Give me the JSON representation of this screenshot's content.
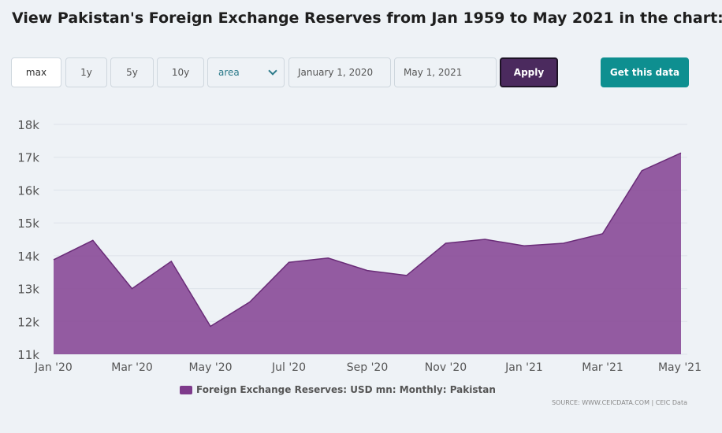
{
  "header": {
    "title": "View Pakistan's Foreign Exchange Reserves from Jan 1959 to May 2021 in the chart:"
  },
  "controls": {
    "ranges": [
      {
        "label": "max",
        "active": true
      },
      {
        "label": "1y",
        "active": false
      },
      {
        "label": "5y",
        "active": false
      },
      {
        "label": "10y",
        "active": false
      }
    ],
    "chart_type": "area",
    "start_date": "January 1, 2020",
    "end_date": "May 1, 2021",
    "apply_label": "Apply",
    "get_data_label": "Get this data"
  },
  "legend": {
    "label": "Foreign Exchange Reserves: USD mn: Monthly: Pakistan"
  },
  "source": "SOURCE: WWW.CEICDATA.COM | CEIC Data",
  "colors": {
    "area": "#8b4e99",
    "line": "#6a2c78",
    "apply": "#4b2a5e",
    "get_data": "#0e8f90"
  },
  "chart_data": {
    "type": "area",
    "title": "",
    "xlabel": "",
    "ylabel": "",
    "x": [
      "Jan 2020",
      "Feb 2020",
      "Mar 2020",
      "Apr 2020",
      "May 2020",
      "Jun 2020",
      "Jul 2020",
      "Aug 2020",
      "Sep 2020",
      "Oct 2020",
      "Nov 2020",
      "Dec 2020",
      "Jan 2021",
      "Feb 2021",
      "Mar 2021",
      "Apr 2021",
      "May 2021"
    ],
    "x_tick_labels": [
      "Jan '20",
      "Mar '20",
      "May '20",
      "Jul '20",
      "Sep '20",
      "Nov '20",
      "Jan '21",
      "Mar '21",
      "May '21"
    ],
    "y_tick_labels": [
      "11k",
      "12k",
      "13k",
      "14k",
      "15k",
      "16k",
      "17k",
      "18k"
    ],
    "ylim": [
      11000,
      18000
    ],
    "grid": true,
    "series": [
      {
        "name": "Foreign Exchange Reserves: USD mn: Monthly: Pakistan",
        "values": [
          13880,
          14470,
          13000,
          13830,
          11850,
          12590,
          13800,
          13930,
          13550,
          13400,
          14380,
          14500,
          14300,
          14380,
          14670,
          16590,
          17130
        ]
      }
    ]
  }
}
